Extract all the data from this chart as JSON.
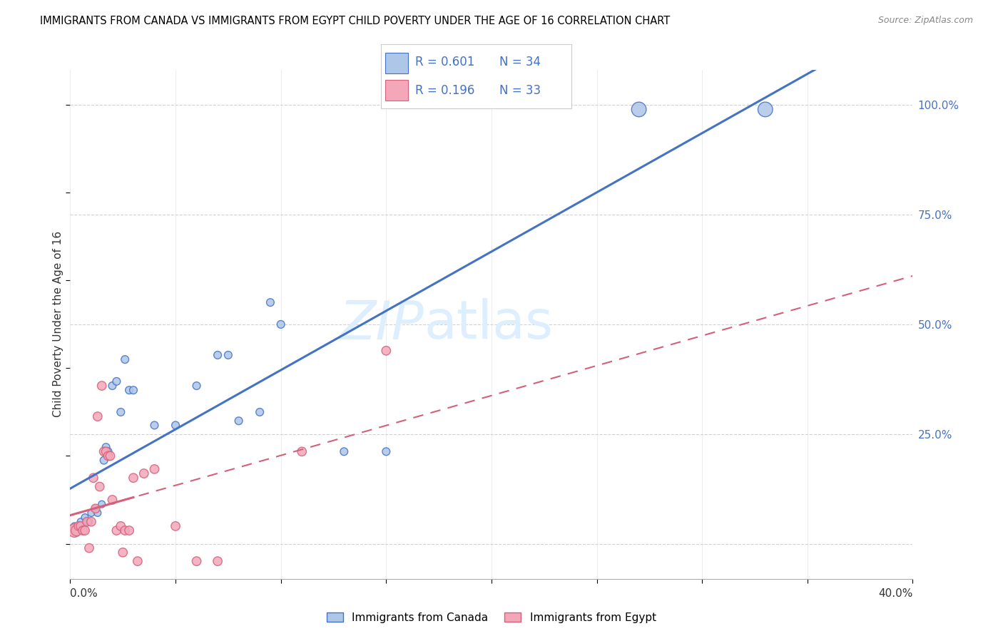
{
  "title": "IMMIGRANTS FROM CANADA VS IMMIGRANTS FROM EGYPT CHILD POVERTY UNDER THE AGE OF 16 CORRELATION CHART",
  "source": "Source: ZipAtlas.com",
  "ylabel": "Child Poverty Under the Age of 16",
  "legend_canada": "Immigrants from Canada",
  "legend_egypt": "Immigrants from Egypt",
  "R_canada": 0.601,
  "N_canada": 34,
  "R_egypt": 0.196,
  "N_egypt": 33,
  "canada_color": "#aec6e8",
  "canada_line_color": "#4472c4",
  "egypt_color": "#f4a7b9",
  "egypt_line_color": "#d4607a",
  "watermark_zip": "ZIP",
  "watermark_atlas": "atlas",
  "xlim": [
    0.0,
    0.4
  ],
  "ylim": [
    -0.08,
    1.08
  ],
  "yticks": [
    0.0,
    0.25,
    0.5,
    0.75,
    1.0
  ],
  "ytick_labels": [
    "",
    "25.0%",
    "50.0%",
    "75.0%",
    "100.0%"
  ],
  "canada_points": [
    [
      0.002,
      0.04
    ],
    [
      0.003,
      0.03
    ],
    [
      0.004,
      0.04
    ],
    [
      0.005,
      0.05
    ],
    [
      0.006,
      0.04
    ],
    [
      0.007,
      0.06
    ],
    [
      0.008,
      0.05
    ],
    [
      0.009,
      0.05
    ],
    [
      0.01,
      0.07
    ],
    [
      0.012,
      0.08
    ],
    [
      0.013,
      0.07
    ],
    [
      0.015,
      0.09
    ],
    [
      0.016,
      0.19
    ],
    [
      0.017,
      0.22
    ],
    [
      0.018,
      0.21
    ],
    [
      0.02,
      0.36
    ],
    [
      0.022,
      0.37
    ],
    [
      0.024,
      0.3
    ],
    [
      0.026,
      0.42
    ],
    [
      0.028,
      0.35
    ],
    [
      0.03,
      0.35
    ],
    [
      0.04,
      0.27
    ],
    [
      0.05,
      0.27
    ],
    [
      0.06,
      0.36
    ],
    [
      0.07,
      0.43
    ],
    [
      0.075,
      0.43
    ],
    [
      0.08,
      0.28
    ],
    [
      0.09,
      0.3
    ],
    [
      0.095,
      0.55
    ],
    [
      0.1,
      0.5
    ],
    [
      0.13,
      0.21
    ],
    [
      0.15,
      0.21
    ],
    [
      0.27,
      0.99
    ],
    [
      0.33,
      0.99
    ]
  ],
  "canada_sizes": [
    50,
    50,
    50,
    50,
    50,
    50,
    50,
    50,
    50,
    50,
    50,
    50,
    60,
    60,
    60,
    60,
    60,
    60,
    60,
    60,
    60,
    60,
    60,
    60,
    60,
    60,
    60,
    60,
    60,
    60,
    60,
    60,
    220,
    220
  ],
  "egypt_points": [
    [
      0.002,
      0.03
    ],
    [
      0.003,
      0.03
    ],
    [
      0.004,
      0.04
    ],
    [
      0.005,
      0.04
    ],
    [
      0.006,
      0.03
    ],
    [
      0.007,
      0.03
    ],
    [
      0.008,
      0.05
    ],
    [
      0.009,
      -0.01
    ],
    [
      0.01,
      0.05
    ],
    [
      0.011,
      0.15
    ],
    [
      0.012,
      0.08
    ],
    [
      0.013,
      0.29
    ],
    [
      0.014,
      0.13
    ],
    [
      0.015,
      0.36
    ],
    [
      0.016,
      0.21
    ],
    [
      0.017,
      0.21
    ],
    [
      0.018,
      0.2
    ],
    [
      0.019,
      0.2
    ],
    [
      0.02,
      0.1
    ],
    [
      0.022,
      0.03
    ],
    [
      0.024,
      0.04
    ],
    [
      0.025,
      -0.02
    ],
    [
      0.026,
      0.03
    ],
    [
      0.028,
      0.03
    ],
    [
      0.03,
      0.15
    ],
    [
      0.032,
      -0.04
    ],
    [
      0.035,
      0.16
    ],
    [
      0.04,
      0.17
    ],
    [
      0.05,
      0.04
    ],
    [
      0.06,
      -0.04
    ],
    [
      0.07,
      -0.04
    ],
    [
      0.11,
      0.21
    ],
    [
      0.15,
      0.44
    ]
  ],
  "egypt_sizes": [
    180,
    120,
    80,
    80,
    80,
    80,
    80,
    80,
    80,
    80,
    80,
    80,
    80,
    80,
    80,
    80,
    80,
    80,
    80,
    80,
    80,
    80,
    80,
    80,
    80,
    80,
    80,
    80,
    80,
    80,
    80,
    80,
    80
  ],
  "bg_color": "#ffffff",
  "grid_color": "#cccccc"
}
